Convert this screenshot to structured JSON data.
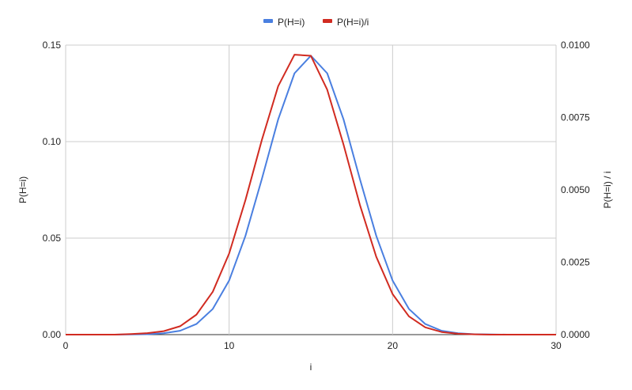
{
  "chart_data": {
    "type": "line",
    "xlabel": "i",
    "ylabel": "P(H=i)",
    "y2label": "P(H=i) / i",
    "xlim": [
      0,
      30
    ],
    "ylim": [
      0,
      0.15
    ],
    "y2lim": [
      0,
      0.01
    ],
    "grid": true,
    "legend_position": "top",
    "x_ticks": [
      "0",
      "10",
      "20",
      "30"
    ],
    "y_ticks": [
      "0.00",
      "0.05",
      "0.10",
      "0.15"
    ],
    "y2_ticks": [
      "0.0000",
      "0.0025",
      "0.0050",
      "0.0075",
      "0.0100"
    ],
    "x": [
      0,
      1,
      2,
      3,
      4,
      5,
      6,
      7,
      8,
      9,
      10,
      11,
      12,
      13,
      14,
      15,
      16,
      17,
      18,
      19,
      20,
      21,
      22,
      23,
      24,
      25,
      26,
      27,
      28,
      29,
      30
    ],
    "series": [
      {
        "name": "P(H=i)",
        "axis": "left",
        "color": "#4a7fe0",
        "values": [
          0,
          0,
          0,
          0,
          0.0001,
          0.0002,
          0.0007,
          0.002,
          0.0055,
          0.0133,
          0.028,
          0.0512,
          0.0806,
          0.1115,
          0.1354,
          0.1445,
          0.1354,
          0.1115,
          0.0806,
          0.0512,
          0.028,
          0.0133,
          0.0055,
          0.002,
          0.0007,
          0.0002,
          0.0001,
          0,
          0,
          0,
          0
        ]
      },
      {
        "name": "P(H=i)/i",
        "axis": "right",
        "color": "#d12b21",
        "values": [
          0,
          0,
          0,
          0,
          2e-05,
          5e-05,
          0.00012,
          0.00029,
          0.00069,
          0.00148,
          0.0028,
          0.00465,
          0.00672,
          0.00858,
          0.00967,
          0.00963,
          0.00846,
          0.00656,
          0.00448,
          0.00269,
          0.0014,
          0.00063,
          0.00025,
          9e-05,
          3e-05,
          1e-05,
          0,
          0,
          0,
          0,
          0
        ]
      }
    ]
  }
}
